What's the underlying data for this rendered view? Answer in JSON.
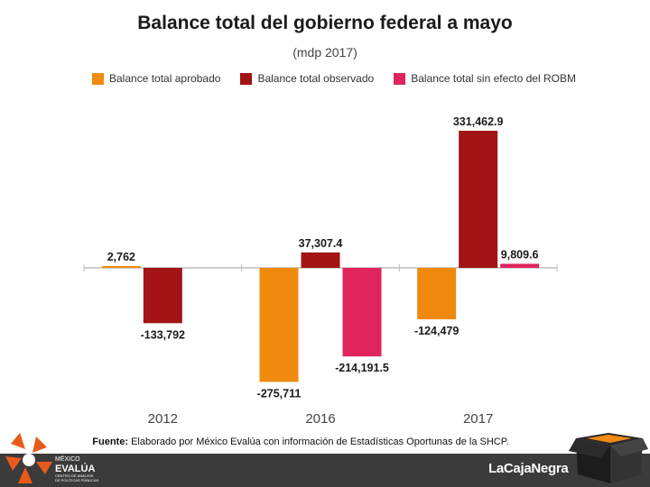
{
  "header": {
    "title": "Balance total del gobierno federal a mayo",
    "subtitle": "(mdp 2017)"
  },
  "legend": [
    {
      "label": "Balance total aprobado",
      "color": "#ef8a0e"
    },
    {
      "label": "Balance total observado",
      "color": "#a31416"
    },
    {
      "label": "Balance total sin efecto del ROBM",
      "color": "#e0245e"
    }
  ],
  "chart_data": {
    "type": "bar",
    "title": "Balance total del gobierno federal a mayo",
    "subtitle": "(mdp 2017)",
    "xlabel": "",
    "ylabel": "",
    "ylim": [
      -300000,
      350000
    ],
    "grid": false,
    "legend_position": "top",
    "categories": [
      "2012",
      "2016",
      "2017"
    ],
    "series": [
      {
        "name": "Balance total aprobado",
        "color": "#ef8a0e",
        "values": [
          2762,
          -275711,
          -124479
        ],
        "labels": [
          "2,762",
          "-275,711",
          "-124,479"
        ]
      },
      {
        "name": "Balance total observado",
        "color": "#a31416",
        "values": [
          -133792,
          37307.4,
          331462.9
        ],
        "labels": [
          "-133,792",
          "37,307.4",
          "331,462.9"
        ]
      },
      {
        "name": "Balance total sin efecto del ROBM",
        "color": "#e0245e",
        "values": [
          null,
          -214191.5,
          9809.6
        ],
        "labels": [
          null,
          "-214,191.5",
          "9,809.6"
        ]
      }
    ]
  },
  "source": {
    "prefix": "Fuente:",
    "text": " Elaborado por México Evalúa con información de Estadísticas Oportunas de la SHCP."
  },
  "footer": {
    "org_line1": "MÉXICO",
    "org_line2": "EVALÚA",
    "org_line3": "CENTRO DE ANÁLISIS",
    "org_line4": "DE POLÍTICAS PÚBLICAS",
    "brand": "LaCajaNegra"
  }
}
